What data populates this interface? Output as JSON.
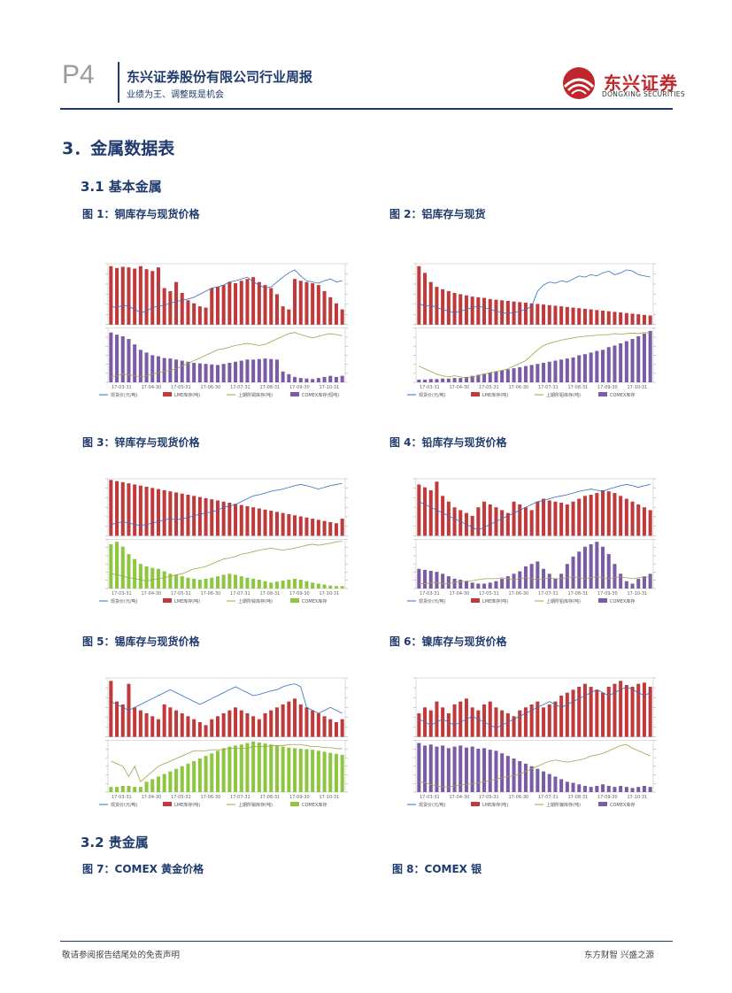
{
  "header": {
    "page_number": "P4",
    "company": "东兴证券股份有限公司行业周报",
    "subtitle": "业绩为王、调整既是机会",
    "logo_cn": "东兴证券",
    "logo_en": "DONGXING SECURITIES"
  },
  "sections": {
    "s3": "3．金属数据表",
    "s31": "3.1  基本金属",
    "s32": "3.2  贵金属"
  },
  "figures": [
    {
      "caption": "图 1：铜库存与现货价格",
      "x_ticks": [
        "17-03-31",
        "17-04-30",
        "17-05-31",
        "17-06-30",
        "17-07-31",
        "17-08-31",
        "17-09-30",
        "17-10-31"
      ],
      "legend": [
        "现货价(元/吨)",
        "LME库存(吨)",
        "上期所铜库存(吨)",
        "COMEX库存(短吨)"
      ],
      "bars_top": [
        0.96,
        0.93,
        0.95,
        0.94,
        0.92,
        0.96,
        0.91,
        0.88,
        0.94,
        0.6,
        0.55,
        0.7,
        0.52,
        0.4,
        0.35,
        0.3,
        0.28,
        0.6,
        0.62,
        0.65,
        0.7,
        0.68,
        0.72,
        0.75,
        0.78,
        0.7,
        0.65,
        0.6,
        0.5,
        0.3,
        0.25,
        0.75,
        0.72,
        0.7,
        0.68,
        0.65,
        0.55,
        0.45,
        0.35,
        0.25
      ],
      "bars_bottom": [
        0.92,
        0.88,
        0.85,
        0.8,
        0.7,
        0.6,
        0.55,
        0.5,
        0.48,
        0.45,
        0.44,
        0.42,
        0.4,
        0.38,
        0.36,
        0.35,
        0.34,
        0.33,
        0.32,
        0.34,
        0.36,
        0.38,
        0.4,
        0.42,
        0.42,
        0.43,
        0.44,
        0.43,
        0.42,
        0.2,
        0.15,
        0.1,
        0.08,
        0.07,
        0.06,
        0.08,
        0.1,
        0.12,
        0.1,
        0.12
      ],
      "line_top": [
        0.3,
        0.28,
        0.32,
        0.3,
        0.25,
        0.2,
        0.22,
        0.28,
        0.3,
        0.32,
        0.35,
        0.38,
        0.4,
        0.42,
        0.45,
        0.5,
        0.55,
        0.6,
        0.62,
        0.65,
        0.7,
        0.72,
        0.75,
        0.78,
        0.7,
        0.65,
        0.6,
        0.62,
        0.7,
        0.78,
        0.85,
        0.9,
        0.8,
        0.72,
        0.7,
        0.68,
        0.72,
        0.75,
        0.7,
        0.72
      ],
      "line_bottom": [
        0.1,
        0.12,
        0.15,
        0.14,
        0.12,
        0.1,
        0.12,
        0.15,
        0.18,
        0.2,
        0.22,
        0.25,
        0.3,
        0.35,
        0.4,
        0.45,
        0.5,
        0.55,
        0.6,
        0.62,
        0.65,
        0.68,
        0.7,
        0.72,
        0.7,
        0.68,
        0.7,
        0.75,
        0.8,
        0.85,
        0.9,
        0.92,
        0.88,
        0.85,
        0.82,
        0.85,
        0.88,
        0.9,
        0.88,
        0.86
      ]
    },
    {
      "caption": "图 2：铝库存与现货",
      "x_ticks": [
        "17-03-31",
        "17-04-30",
        "17-05-31",
        "17-06-30",
        "17-07-31",
        "17-08-31",
        "17-09-30",
        "17-10-31"
      ],
      "legend": [
        "现货价(元/吨)",
        "LME库存(吨)",
        "上期所铝库存(吨)",
        "COMEX库存"
      ],
      "bars_top": [
        0.96,
        0.85,
        0.7,
        0.62,
        0.58,
        0.55,
        0.52,
        0.5,
        0.48,
        0.46,
        0.45,
        0.44,
        0.42,
        0.41,
        0.4,
        0.39,
        0.38,
        0.37,
        0.36,
        0.35,
        0.34,
        0.33,
        0.32,
        0.31,
        0.3,
        0.29,
        0.28,
        0.27,
        0.26,
        0.25,
        0.24,
        0.23,
        0.22,
        0.21,
        0.2,
        0.19,
        0.18,
        0.17,
        0.16,
        0.15
      ],
      "bars_bottom": [
        0.05,
        0.05,
        0.06,
        0.06,
        0.07,
        0.07,
        0.08,
        0.08,
        0.1,
        0.12,
        0.14,
        0.16,
        0.18,
        0.2,
        0.22,
        0.24,
        0.26,
        0.28,
        0.3,
        0.32,
        0.34,
        0.36,
        0.38,
        0.4,
        0.42,
        0.44,
        0.46,
        0.5,
        0.52,
        0.55,
        0.58,
        0.6,
        0.65,
        0.68,
        0.72,
        0.76,
        0.8,
        0.85,
        0.9,
        0.95
      ],
      "line_top": [
        0.35,
        0.3,
        0.32,
        0.28,
        0.25,
        0.22,
        0.2,
        0.22,
        0.25,
        0.28,
        0.3,
        0.28,
        0.25,
        0.22,
        0.2,
        0.18,
        0.2,
        0.22,
        0.25,
        0.3,
        0.55,
        0.65,
        0.7,
        0.68,
        0.72,
        0.7,
        0.75,
        0.8,
        0.78,
        0.82,
        0.8,
        0.85,
        0.88,
        0.82,
        0.85,
        0.9,
        0.88,
        0.82,
        0.8,
        0.78
      ],
      "line_bottom": [
        0.3,
        0.25,
        0.2,
        0.15,
        0.12,
        0.1,
        0.12,
        0.1,
        0.08,
        0.1,
        0.12,
        0.15,
        0.18,
        0.2,
        0.22,
        0.25,
        0.3,
        0.35,
        0.4,
        0.5,
        0.6,
        0.68,
        0.72,
        0.75,
        0.78,
        0.8,
        0.82,
        0.84,
        0.85,
        0.86,
        0.87,
        0.88,
        0.88,
        0.9,
        0.89,
        0.9,
        0.91,
        0.9,
        0.92,
        0.91
      ]
    },
    {
      "caption": "图 3：锌库存与现货价格",
      "x_ticks": [
        "17-03-31",
        "17-04-30",
        "17-05-31",
        "17-06-30",
        "17-07-31",
        "17-08-31",
        "17-09-30",
        "17-10-31"
      ],
      "legend": [
        "现货价(元/吨)",
        "LME库存(吨)",
        "上期所锌库存(吨)",
        "COMEX库存"
      ],
      "bars_top": [
        0.98,
        0.96,
        0.94,
        0.92,
        0.9,
        0.88,
        0.86,
        0.84,
        0.82,
        0.8,
        0.78,
        0.76,
        0.74,
        0.72,
        0.7,
        0.68,
        0.66,
        0.64,
        0.62,
        0.6,
        0.58,
        0.56,
        0.54,
        0.52,
        0.5,
        0.48,
        0.46,
        0.44,
        0.42,
        0.4,
        0.38,
        0.36,
        0.34,
        0.32,
        0.3,
        0.28,
        0.26,
        0.24,
        0.22,
        0.3
      ],
      "bars_bottom": [
        0.9,
        0.95,
        0.85,
        0.7,
        0.6,
        0.5,
        0.45,
        0.42,
        0.4,
        0.35,
        0.3,
        0.28,
        0.25,
        0.22,
        0.2,
        0.18,
        0.2,
        0.22,
        0.25,
        0.28,
        0.3,
        0.28,
        0.25,
        0.22,
        0.2,
        0.18,
        0.15,
        0.12,
        0.14,
        0.16,
        0.18,
        0.2,
        0.18,
        0.15,
        0.12,
        0.1,
        0.08,
        0.06,
        0.05,
        0.05
      ],
      "line_top": [
        0.2,
        0.22,
        0.25,
        0.22,
        0.2,
        0.18,
        0.2,
        0.22,
        0.25,
        0.28,
        0.3,
        0.28,
        0.3,
        0.32,
        0.35,
        0.38,
        0.4,
        0.42,
        0.45,
        0.5,
        0.52,
        0.55,
        0.6,
        0.65,
        0.7,
        0.72,
        0.75,
        0.78,
        0.8,
        0.82,
        0.85,
        0.88,
        0.9,
        0.88,
        0.85,
        0.82,
        0.85,
        0.88,
        0.9,
        0.92
      ],
      "line_bottom": [
        0.3,
        0.28,
        0.25,
        0.22,
        0.2,
        0.18,
        0.15,
        0.18,
        0.2,
        0.22,
        0.25,
        0.28,
        0.3,
        0.35,
        0.4,
        0.42,
        0.45,
        0.5,
        0.55,
        0.6,
        0.62,
        0.65,
        0.7,
        0.72,
        0.75,
        0.78,
        0.8,
        0.82,
        0.8,
        0.78,
        0.8,
        0.82,
        0.85,
        0.88,
        0.9,
        0.88,
        0.9,
        0.92,
        0.95,
        0.96
      ]
    },
    {
      "caption": "图 4：铅库存与现货价格",
      "x_ticks": [
        "17-03-31",
        "17-04-30",
        "17-05-31",
        "17-06-30",
        "17-07-31",
        "17-08-31",
        "17-09-30",
        "17-10-31"
      ],
      "legend": [
        "现货价(元/吨)",
        "LME库存(吨)",
        "上期所铅库存(吨)",
        "COMEX库存"
      ],
      "bars_top": [
        0.9,
        0.85,
        0.8,
        0.95,
        0.7,
        0.6,
        0.5,
        0.45,
        0.4,
        0.35,
        0.5,
        0.6,
        0.55,
        0.5,
        0.45,
        0.4,
        0.6,
        0.55,
        0.5,
        0.45,
        0.6,
        0.65,
        0.62,
        0.6,
        0.58,
        0.55,
        0.6,
        0.65,
        0.7,
        0.72,
        0.75,
        0.8,
        0.78,
        0.75,
        0.7,
        0.65,
        0.6,
        0.55,
        0.5,
        0.45
      ],
      "bars_bottom": [
        0.4,
        0.38,
        0.36,
        0.34,
        0.3,
        0.25,
        0.2,
        0.18,
        0.15,
        0.12,
        0.1,
        0.1,
        0.12,
        0.15,
        0.2,
        0.25,
        0.3,
        0.35,
        0.45,
        0.5,
        0.55,
        0.4,
        0.3,
        0.2,
        0.3,
        0.5,
        0.65,
        0.75,
        0.85,
        0.9,
        0.95,
        0.85,
        0.7,
        0.5,
        0.3,
        0.15,
        0.1,
        0.2,
        0.25,
        0.3
      ],
      "line_top": [
        0.6,
        0.55,
        0.5,
        0.45,
        0.4,
        0.35,
        0.3,
        0.25,
        0.2,
        0.15,
        0.1,
        0.15,
        0.2,
        0.25,
        0.3,
        0.35,
        0.4,
        0.45,
        0.5,
        0.55,
        0.6,
        0.62,
        0.65,
        0.68,
        0.7,
        0.72,
        0.75,
        0.78,
        0.8,
        0.82,
        0.8,
        0.78,
        0.82,
        0.85,
        0.88,
        0.9,
        0.88,
        0.85,
        0.88,
        0.9
      ],
      "line_bottom": [
        0.1,
        0.1,
        0.12,
        0.12,
        0.1,
        0.1,
        0.12,
        0.14,
        0.15,
        0.16,
        0.18,
        0.2,
        0.2,
        0.2,
        0.22,
        0.2,
        0.18,
        0.2,
        0.22,
        0.2,
        0.18,
        0.2,
        0.22,
        0.2,
        0.2,
        0.22,
        0.24,
        0.22,
        0.2,
        0.22,
        0.24,
        0.22,
        0.2,
        0.22,
        0.24,
        0.22,
        0.2,
        0.22,
        0.24,
        0.22
      ]
    },
    {
      "caption": "图 5：锡库存与现货价格",
      "x_ticks": [
        "17-03-31",
        "17-04-30",
        "17-05-31",
        "17-06-30",
        "17-07-31",
        "17-08-31",
        "17-09-30",
        "17-10-31"
      ],
      "legend": [
        "现货价(元/吨)",
        "LME库存(吨)",
        "上期所锡库存(吨)",
        "COMEX库存"
      ],
      "bars_top": [
        0.95,
        0.6,
        0.55,
        0.9,
        0.5,
        0.45,
        0.4,
        0.35,
        0.3,
        0.55,
        0.5,
        0.45,
        0.4,
        0.35,
        0.3,
        0.25,
        0.2,
        0.3,
        0.35,
        0.4,
        0.45,
        0.5,
        0.45,
        0.4,
        0.35,
        0.3,
        0.4,
        0.45,
        0.5,
        0.55,
        0.6,
        0.65,
        0.55,
        0.5,
        0.45,
        0.4,
        0.35,
        0.3,
        0.25,
        0.3
      ],
      "bars_bottom": [
        0.1,
        0.1,
        0.12,
        0.12,
        0.1,
        0.1,
        0.2,
        0.25,
        0.3,
        0.35,
        0.4,
        0.45,
        0.5,
        0.55,
        0.6,
        0.65,
        0.7,
        0.75,
        0.8,
        0.85,
        0.88,
        0.9,
        0.92,
        0.95,
        0.98,
        0.96,
        0.94,
        0.92,
        0.9,
        0.88,
        0.86,
        0.85,
        0.84,
        0.83,
        0.82,
        0.8,
        0.78,
        0.76,
        0.74,
        0.72
      ],
      "line_top": [
        0.6,
        0.55,
        0.5,
        0.45,
        0.5,
        0.55,
        0.6,
        0.65,
        0.7,
        0.75,
        0.8,
        0.75,
        0.7,
        0.65,
        0.6,
        0.55,
        0.6,
        0.65,
        0.7,
        0.75,
        0.8,
        0.85,
        0.8,
        0.75,
        0.7,
        0.72,
        0.75,
        0.78,
        0.8,
        0.85,
        0.88,
        0.9,
        0.85,
        0.5,
        0.45,
        0.4,
        0.45,
        0.5,
        0.45,
        0.4
      ],
      "line_bottom": [
        0.6,
        0.55,
        0.5,
        0.3,
        0.5,
        0.2,
        0.3,
        0.4,
        0.5,
        0.55,
        0.6,
        0.65,
        0.7,
        0.75,
        0.8,
        0.8,
        0.8,
        0.82,
        0.82,
        0.82,
        0.85,
        0.85,
        0.85,
        0.85,
        0.88,
        0.88,
        0.88,
        0.9,
        0.9,
        0.9,
        0.92,
        0.92,
        0.92,
        0.9,
        0.88,
        0.88,
        0.86,
        0.86,
        0.84,
        0.84
      ]
    },
    {
      "caption": "图 6：镍库存与现货价格",
      "x_ticks": [
        "17-03-31",
        "17-04-30",
        "17-05-31",
        "17-06-30",
        "17-07-31",
        "17-08-31",
        "17-09-30",
        "17-10-31"
      ],
      "legend": [
        "现货价(元/吨)",
        "LME库存(吨)",
        "上期所镍库存(吨)",
        "COMEX库存"
      ],
      "bars_top": [
        0.4,
        0.5,
        0.45,
        0.6,
        0.5,
        0.4,
        0.55,
        0.6,
        0.65,
        0.5,
        0.45,
        0.55,
        0.6,
        0.5,
        0.45,
        0.4,
        0.35,
        0.45,
        0.5,
        0.55,
        0.6,
        0.5,
        0.55,
        0.6,
        0.7,
        0.75,
        0.8,
        0.85,
        0.9,
        0.85,
        0.8,
        0.75,
        0.85,
        0.9,
        0.95,
        0.88,
        0.85,
        0.9,
        0.92,
        0.85
      ],
      "bars_bottom": [
        0.95,
        0.9,
        0.92,
        0.88,
        0.9,
        0.85,
        0.88,
        0.9,
        0.86,
        0.88,
        0.84,
        0.85,
        0.82,
        0.8,
        0.75,
        0.7,
        0.65,
        0.6,
        0.55,
        0.5,
        0.45,
        0.4,
        0.35,
        0.3,
        0.25,
        0.2,
        0.18,
        0.15,
        0.12,
        0.1,
        0.12,
        0.15,
        0.12,
        0.1,
        0.12,
        0.1,
        0.08,
        0.1,
        0.12,
        0.1
      ],
      "line_top": [
        0.3,
        0.25,
        0.2,
        0.25,
        0.3,
        0.25,
        0.2,
        0.25,
        0.3,
        0.35,
        0.3,
        0.25,
        0.2,
        0.15,
        0.2,
        0.25,
        0.3,
        0.35,
        0.4,
        0.45,
        0.5,
        0.55,
        0.6,
        0.55,
        0.5,
        0.55,
        0.6,
        0.65,
        0.7,
        0.75,
        0.8,
        0.75,
        0.7,
        0.75,
        0.8,
        0.85,
        0.8,
        0.75,
        0.7,
        0.75
      ],
      "line_bottom": [
        0.2,
        0.18,
        0.15,
        0.12,
        0.1,
        0.1,
        0.12,
        0.14,
        0.15,
        0.16,
        0.18,
        0.2,
        0.22,
        0.25,
        0.28,
        0.3,
        0.32,
        0.35,
        0.4,
        0.45,
        0.5,
        0.55,
        0.6,
        0.62,
        0.6,
        0.58,
        0.6,
        0.62,
        0.65,
        0.7,
        0.72,
        0.75,
        0.8,
        0.85,
        0.9,
        0.92,
        0.85,
        0.8,
        0.75,
        0.7
      ]
    }
  ],
  "figures_bottom": [
    {
      "caption": "图 7：COMEX 黄金价格"
    },
    {
      "caption": "图 8：COMEX 银"
    }
  ],
  "footer": {
    "left": "敬请参阅报告结尾处的免责声明",
    "right": "东方财智  兴盛之源"
  },
  "colors": {
    "navy": "#1f3a6d",
    "red": "#c0272d",
    "bar_red": "#c0393b",
    "bar_purple": "#7b5aa6",
    "bar_green": "#8dc63f",
    "line_blue": "#2f6fc2",
    "line_olive": "#9ea44a"
  }
}
